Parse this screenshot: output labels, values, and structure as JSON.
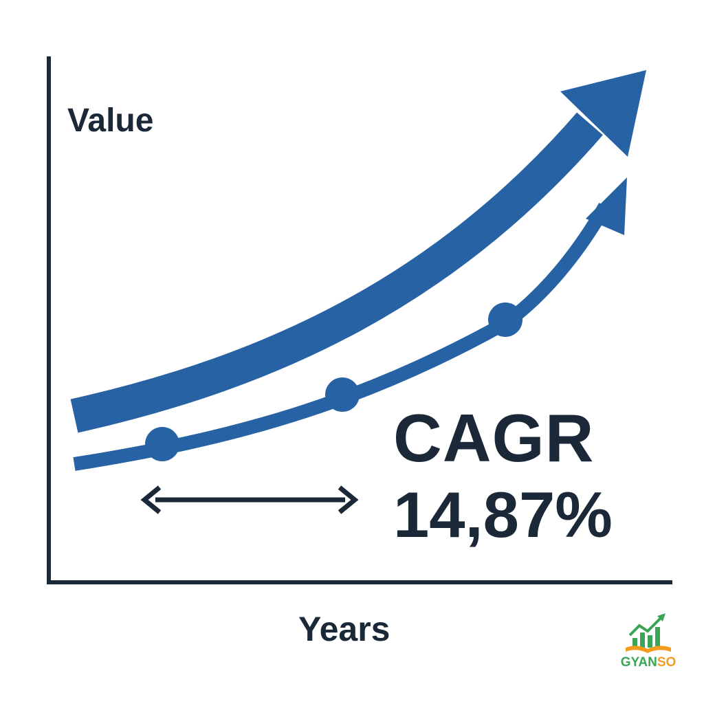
{
  "diagram": {
    "y_axis_label": "Value",
    "x_axis_label": "Years",
    "metric_name": "CAGR",
    "metric_value": "14,87%"
  },
  "logo": {
    "part1": "GYAN",
    "part2": "SO"
  },
  "colors": {
    "axis": "#1b2838",
    "text": "#1b2838",
    "curve_blue": "#2762a5",
    "logo_green": "#3aa655",
    "logo_orange": "#f39c1f"
  },
  "icons": [
    "up-trend-arrow-icon",
    "double-headed-arrow-icon",
    "logo-chart-book-icon"
  ]
}
